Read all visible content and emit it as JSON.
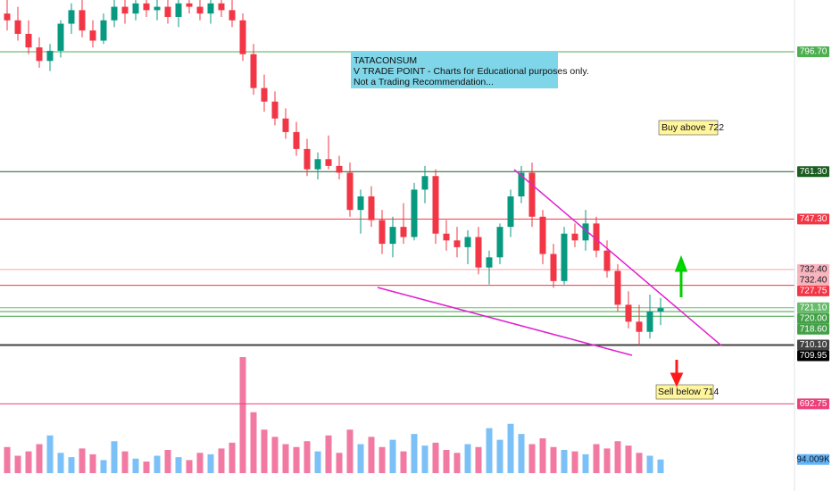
{
  "chart_data": {
    "type": "candlestick",
    "ylim": [
      667,
      812
    ],
    "up_color": "#089981",
    "down_color": "#f23645",
    "candles": [
      [
        808,
        812,
        803,
        806
      ],
      [
        806,
        810,
        800,
        802
      ],
      [
        802,
        806,
        796,
        798
      ],
      [
        798,
        801,
        792,
        794
      ],
      [
        794,
        799,
        791,
        797
      ],
      [
        797,
        806,
        795,
        805
      ],
      [
        805,
        811,
        802,
        809
      ],
      [
        809,
        812,
        801,
        803
      ],
      [
        803,
        806,
        798,
        800
      ],
      [
        800,
        808,
        799,
        806
      ],
      [
        806,
        812,
        804,
        810
      ],
      [
        810,
        812,
        805,
        808
      ],
      [
        808,
        812,
        806,
        811
      ],
      [
        811,
        812,
        807,
        809
      ],
      [
        809,
        812,
        806,
        810
      ],
      [
        810,
        812,
        805,
        807
      ],
      [
        807,
        812,
        804,
        811
      ],
      [
        811,
        812,
        808,
        810
      ],
      [
        810,
        812,
        806,
        808
      ],
      [
        808,
        812,
        805,
        811
      ],
      [
        811,
        812,
        807,
        809
      ],
      [
        809,
        812,
        804,
        806
      ],
      [
        806,
        808,
        794,
        796
      ],
      [
        796,
        799,
        784,
        786
      ],
      [
        786,
        790,
        779,
        782
      ],
      [
        782,
        785,
        775,
        777
      ],
      [
        777,
        780,
        771,
        773
      ],
      [
        773,
        776,
        766,
        768
      ],
      [
        768,
        771,
        760,
        762
      ],
      [
        762,
        767,
        759,
        765
      ],
      [
        765,
        772,
        762,
        763
      ],
      [
        763,
        766,
        759,
        761
      ],
      [
        761,
        764,
        748,
        750
      ],
      [
        750,
        756,
        743,
        754
      ],
      [
        754,
        757,
        745,
        747
      ],
      [
        747,
        750,
        737,
        740
      ],
      [
        740,
        748,
        736,
        745
      ],
      [
        745,
        752,
        740,
        742
      ],
      [
        742,
        758,
        741,
        756
      ],
      [
        756,
        763,
        752,
        760
      ],
      [
        760,
        762,
        740,
        743
      ],
      [
        743,
        747,
        738,
        741
      ],
      [
        741,
        745,
        736,
        739
      ],
      [
        739,
        744,
        734,
        742
      ],
      [
        742,
        745,
        731,
        733
      ],
      [
        733,
        738,
        728,
        736
      ],
      [
        736,
        746,
        734,
        745
      ],
      [
        745,
        756,
        742,
        754
      ],
      [
        754,
        763,
        752,
        761
      ],
      [
        761,
        764,
        745,
        748
      ],
      [
        748,
        750,
        734,
        737
      ],
      [
        737,
        740,
        727,
        729
      ],
      [
        729,
        745,
        728,
        743
      ],
      [
        743,
        746,
        739,
        741
      ],
      [
        741,
        750,
        738,
        746
      ],
      [
        746,
        748,
        736,
        738
      ],
      [
        738,
        741,
        730,
        732
      ],
      [
        732,
        734,
        720,
        722
      ],
      [
        722,
        726,
        715,
        717
      ],
      [
        717,
        722,
        710,
        714
      ],
      [
        714,
        725,
        712,
        720
      ],
      [
        720,
        724,
        716,
        721
      ]
    ],
    "volume": {
      "lim": [
        0,
        800000
      ],
      "up_color": "#64b5f6",
      "down_color": "#f06292",
      "values": [
        180000,
        120000,
        150000,
        200000,
        260000,
        140000,
        110000,
        170000,
        130000,
        90000,
        220000,
        150000,
        100000,
        80000,
        120000,
        160000,
        110000,
        90000,
        140000,
        130000,
        170000,
        210000,
        800000,
        420000,
        300000,
        250000,
        200000,
        180000,
        220000,
        150000,
        260000,
        140000,
        300000,
        200000,
        250000,
        180000,
        230000,
        150000,
        270000,
        190000,
        210000,
        160000,
        140000,
        200000,
        180000,
        310000,
        230000,
        340000,
        270000,
        200000,
        240000,
        180000,
        160000,
        150000,
        130000,
        200000,
        170000,
        220000,
        190000,
        140000,
        120000,
        94009
      ],
      "last": {
        "value": 94009,
        "label": "94.009K"
      }
    },
    "levels": [
      {
        "value": 796.7,
        "label": "796.70",
        "color": "#4caf50"
      },
      {
        "value": 761.3,
        "label": "761.30",
        "color": "#1b5e20"
      },
      {
        "value": 747.3,
        "label": "747.30",
        "color": "#f23645"
      },
      {
        "value": 732.4,
        "label": "732.40",
        "color": "#f8b4bc"
      },
      {
        "value": 732.4,
        "label": "732.40",
        "color": "#f8b4bc"
      },
      {
        "value": 727.75,
        "label": "727.75",
        "color": "#f23645"
      },
      {
        "value": 721.1,
        "label": "721.10",
        "color": "#66bb6a"
      },
      {
        "value": 720,
        "label": "720.00",
        "color": "#43a047"
      },
      {
        "value": 718.6,
        "label": "718.60",
        "color": "#43a047"
      },
      {
        "value": 710.1,
        "label": "710.10",
        "color": "#424242"
      },
      {
        "value": 709.95,
        "label": "709.95",
        "color": "#000000"
      },
      {
        "value": 692.75,
        "label": "692.75",
        "color": "#ec407a"
      }
    ],
    "note_lines": [
      "TATACONSUM",
      "V TRADE POINT - Charts for Educational purposes only.",
      "Not a Trading Recommendation..."
    ],
    "buy_note": "Buy above 722",
    "sell_note": "Sell below 714"
  }
}
